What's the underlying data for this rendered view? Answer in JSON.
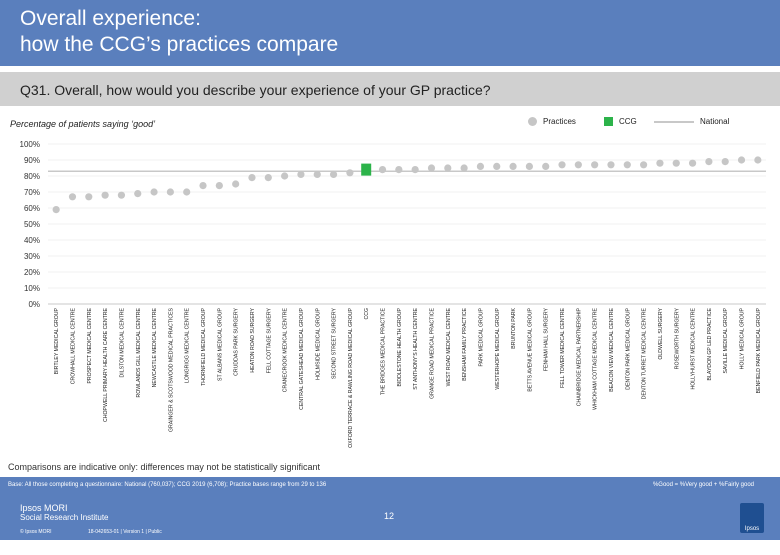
{
  "header": {
    "title_line1": "Overall experience:",
    "title_line2": "how the CCG’s practices compare"
  },
  "question": "Q31. Overall, how would you describe your experience of your GP practice?",
  "subtitle": "Percentage of patients saying ‘good’",
  "legend": {
    "practices": "Practices",
    "ccg": "CCG",
    "national": "National"
  },
  "colors": {
    "header": "#5a7fbd",
    "dot": "#c6c6c6",
    "ccg": "#2cb34a",
    "national_line": "#c8c8c8"
  },
  "chart_data": {
    "type": "scatter",
    "ylim": [
      0,
      100
    ],
    "yticks": [
      "0%",
      "10%",
      "20%",
      "30%",
      "40%",
      "50%",
      "60%",
      "70%",
      "80%",
      "90%",
      "100%"
    ],
    "national_value": 83,
    "ccg_category": "CCG",
    "categories": [
      "BIRTLEY MEDICAL GROUP",
      "CROWHALL MEDICAL CENTRE",
      "PROSPECT MEDICAL CENTRE",
      "CHOPWELL PRIMARY HEALTH CARE CENTRE",
      "DILSTON MEDICAL CENTRE",
      "ROWLANDS GILL MEDICAL CENTRE",
      "NEWCASTLE MEDICAL CENTRE",
      "GRAINGER & SCOTSWOOD MEDICAL PRACTICES",
      "LONGRIGG MEDICAL CENTRE",
      "THORNFIELD MEDICAL GROUP",
      "ST ALBANS MEDICAL GROUP",
      "CRUDDAS PARK SURGERY",
      "HEATON ROAD SURGERY",
      "FELL COTTAGE SURGERY",
      "CRANECROOK MEDICAL CENTRE",
      "CENTRAL GATESHEAD MEDICAL GROUP",
      "HOLMSIDE MEDICAL GROUP",
      "SECOND STREET SURGERY",
      "OXFORD TERRACE & RAWLING ROAD MEDICAL GROUP",
      "CCG",
      "THE BRIDGES MEDICAL PRACTICE",
      "BIDDLESTONE HEALTH GROUP",
      "ST ANTHONY'S HEALTH CENTRE",
      "GRANGE ROAD MEDICAL PRACTICE",
      "WEST ROAD MEDICAL CENTRE",
      "BENSHAM FAMILY PRACTICE",
      "PARK MEDICAL GROUP",
      "WESTERHOPE MEDICAL GROUP",
      "BRUNTON PARK",
      "BETTS AVENUE MEDICAL GROUP",
      "FENHAM HALL SURGERY",
      "FELL TOWER MEDICAL CENTRE",
      "CHAINBRIDGE MEDICAL PARTNERSHIP",
      "WHICKHAM COTTAGE MEDICAL CENTRE",
      "BEACON VIEW MEDICAL CENTRE",
      "DENTON PARK MEDICAL GROUP",
      "DENTON TURRET MEDICAL CENTRE",
      "OLDWELL SURGERY",
      "ROSEWORTH SURGERY",
      "HOLLYHURST MEDICAL CENTRE",
      "BLAYDON GP LED PRACTICE",
      "SAVILLE MEDICAL GROUP",
      "HOLLY MEDICAL GROUP",
      "BENFIELD PARK MEDICAL GROUP"
    ],
    "values": [
      59,
      67,
      67,
      68,
      68,
      69,
      70,
      70,
      70,
      74,
      74,
      75,
      79,
      79,
      80,
      81,
      81,
      81,
      82,
      84,
      84,
      84,
      84,
      85,
      85,
      85,
      86,
      86,
      86,
      86,
      86,
      87,
      87,
      87,
      87,
      87,
      87,
      88,
      88,
      88,
      89,
      89,
      90,
      90
    ]
  },
  "note": "Comparisons are indicative only: differences may not be statistically significant",
  "footer": {
    "base": "Base: All those completing a questionnaire: National (760,037); CCG 2019 (6,708); Practice bases range from 29 to 136",
    "formula": "%Good = %Very good + %Fairly good",
    "page": "12",
    "logo_line1": "Ipsos MORI",
    "logo_line2": "Social Research Institute",
    "copyright": "© Ipsos MORI",
    "reference": "18-042653-01 | Version 1 | Public",
    "ipsos_badge": "Ipsos"
  }
}
